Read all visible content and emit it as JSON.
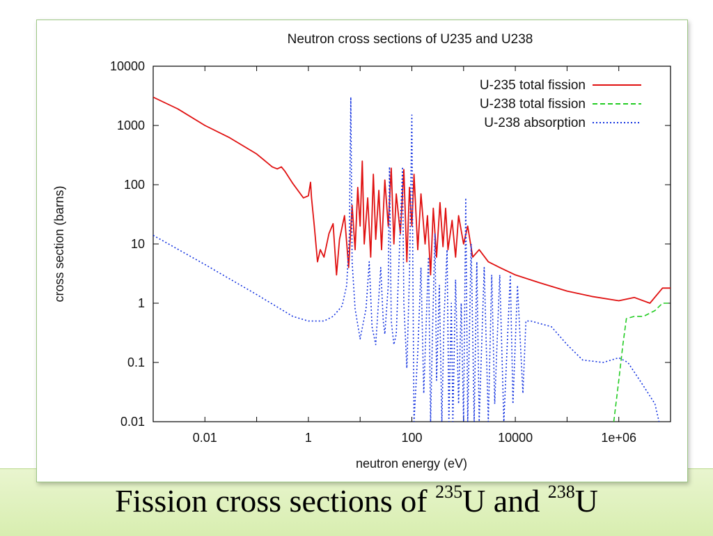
{
  "caption": {
    "text_before": "Fission cross sections of ",
    "iso1_mass": "235",
    "iso1_symbol": "U and ",
    "iso2_mass": "238",
    "iso2_symbol": "U"
  },
  "chart_data": {
    "type": "line",
    "title": "Neutron cross sections of U235 and U238",
    "xlabel": "neutron energy (eV)",
    "ylabel": "cross section (barns)",
    "x_scale": "log",
    "y_scale": "log",
    "xlim": [
      0.001,
      10000000
    ],
    "ylim": [
      0.01,
      10000
    ],
    "x_ticks": [
      {
        "value": 0.01,
        "label": "0.01"
      },
      {
        "value": 1,
        "label": "1"
      },
      {
        "value": 100,
        "label": "100"
      },
      {
        "value": 10000,
        "label": "10000"
      },
      {
        "value": 1000000,
        "label": "1e+06"
      }
    ],
    "y_ticks": [
      {
        "value": 0.01,
        "label": "0.01"
      },
      {
        "value": 0.1,
        "label": "0.1"
      },
      {
        "value": 1,
        "label": "1"
      },
      {
        "value": 10,
        "label": "10"
      },
      {
        "value": 100,
        "label": "100"
      },
      {
        "value": 1000,
        "label": "1000"
      },
      {
        "value": 10000,
        "label": "10000"
      }
    ],
    "grid": false,
    "legend_position": "top-right",
    "series": [
      {
        "name": "U-235 total fission",
        "color": "#e01010",
        "dash": "solid",
        "points": [
          [
            0.001,
            3000
          ],
          [
            0.003,
            1900
          ],
          [
            0.01,
            1000
          ],
          [
            0.03,
            620
          ],
          [
            0.1,
            330
          ],
          [
            0.2,
            200
          ],
          [
            0.25,
            185
          ],
          [
            0.3,
            200
          ],
          [
            0.35,
            170
          ],
          [
            0.5,
            105
          ],
          [
            0.8,
            60
          ],
          [
            1.0,
            65
          ],
          [
            1.1,
            110
          ],
          [
            1.15,
            60
          ],
          [
            1.3,
            20
          ],
          [
            1.5,
            5
          ],
          [
            1.7,
            8
          ],
          [
            2.0,
            6
          ],
          [
            2.5,
            15
          ],
          [
            3,
            22
          ],
          [
            3.5,
            3
          ],
          [
            4,
            12
          ],
          [
            5,
            30
          ],
          [
            6,
            4
          ],
          [
            7,
            45
          ],
          [
            8,
            8
          ],
          [
            9,
            90
          ],
          [
            10,
            20
          ],
          [
            11,
            250
          ],
          [
            12,
            10
          ],
          [
            14,
            60
          ],
          [
            16,
            6
          ],
          [
            18,
            150
          ],
          [
            20,
            12
          ],
          [
            23,
            80
          ],
          [
            26,
            8
          ],
          [
            30,
            120
          ],
          [
            35,
            20
          ],
          [
            40,
            190
          ],
          [
            45,
            10
          ],
          [
            50,
            70
          ],
          [
            60,
            15
          ],
          [
            70,
            180
          ],
          [
            80,
            5
          ],
          [
            90,
            90
          ],
          [
            100,
            20
          ],
          [
            110,
            150
          ],
          [
            130,
            8
          ],
          [
            150,
            70
          ],
          [
            180,
            10
          ],
          [
            200,
            30
          ],
          [
            230,
            3
          ],
          [
            260,
            40
          ],
          [
            300,
            6
          ],
          [
            350,
            50
          ],
          [
            400,
            9
          ],
          [
            450,
            40
          ],
          [
            500,
            8
          ],
          [
            600,
            25
          ],
          [
            700,
            6
          ],
          [
            800,
            30
          ],
          [
            1000,
            10
          ],
          [
            1200,
            20
          ],
          [
            1500,
            6
          ],
          [
            2000,
            8
          ],
          [
            3000,
            5
          ],
          [
            5000,
            4
          ],
          [
            10000,
            3
          ],
          [
            30000,
            2.2
          ],
          [
            100000,
            1.6
          ],
          [
            300000,
            1.3
          ],
          [
            1000000,
            1.1
          ],
          [
            2000000,
            1.25
          ],
          [
            4000000,
            1.0
          ],
          [
            7000000,
            1.8
          ],
          [
            10000000,
            1.8
          ]
        ]
      },
      {
        "name": "U-238 total fission",
        "color": "#22cc22",
        "dash": "dashed",
        "points": [
          [
            800000,
            0.01
          ],
          [
            1000000,
            0.05
          ],
          [
            1200000,
            0.2
          ],
          [
            1400000,
            0.55
          ],
          [
            2000000,
            0.6
          ],
          [
            3000000,
            0.6
          ],
          [
            5000000,
            0.75
          ],
          [
            7000000,
            1.0
          ],
          [
            10000000,
            1.0
          ]
        ]
      },
      {
        "name": "U-238 absorption",
        "color": "#1030e0",
        "dash": "dotted",
        "points": [
          [
            0.001,
            14
          ],
          [
            0.01,
            4.5
          ],
          [
            0.1,
            1.4
          ],
          [
            0.5,
            0.6
          ],
          [
            1.0,
            0.5
          ],
          [
            2.0,
            0.5
          ],
          [
            3.0,
            0.6
          ],
          [
            4.5,
            0.9
          ],
          [
            5.5,
            2.0
          ],
          [
            6.2,
            15
          ],
          [
            6.6,
            3000
          ],
          [
            7.0,
            5
          ],
          [
            8,
            0.8
          ],
          [
            10,
            0.25
          ],
          [
            13,
            0.8
          ],
          [
            15,
            5
          ],
          [
            17,
            0.4
          ],
          [
            20,
            0.2
          ],
          [
            25,
            4
          ],
          [
            28,
            0.5
          ],
          [
            30,
            0.3
          ],
          [
            35,
            2
          ],
          [
            37,
            200
          ],
          [
            40,
            0.5
          ],
          [
            45,
            0.2
          ],
          [
            50,
            0.3
          ],
          [
            60,
            20
          ],
          [
            66,
            200
          ],
          [
            70,
            1
          ],
          [
            80,
            0.08
          ],
          [
            90,
            3
          ],
          [
            100,
            1500
          ],
          [
            105,
            2
          ],
          [
            110,
            0.01
          ],
          [
            130,
            0.15
          ],
          [
            150,
            4
          ],
          [
            170,
            0.03
          ],
          [
            190,
            0.5
          ],
          [
            210,
            6
          ],
          [
            230,
            0.01
          ],
          [
            250,
            0.3
          ],
          [
            280,
            15
          ],
          [
            300,
            0.05
          ],
          [
            340,
            2
          ],
          [
            380,
            0.01
          ],
          [
            420,
            0.6
          ],
          [
            480,
            8
          ],
          [
            520,
            0.01
          ],
          [
            580,
            1
          ],
          [
            620,
            0.01
          ],
          [
            700,
            2.5
          ],
          [
            800,
            0.02
          ],
          [
            900,
            1
          ],
          [
            1000,
            0.01
          ],
          [
            1100,
            60
          ],
          [
            1200,
            0.01
          ],
          [
            1400,
            10
          ],
          [
            1600,
            0.01
          ],
          [
            1800,
            5
          ],
          [
            2000,
            0.01
          ],
          [
            2500,
            4
          ],
          [
            3000,
            0.01
          ],
          [
            3500,
            3
          ],
          [
            4000,
            0.02
          ],
          [
            5000,
            3
          ],
          [
            6000,
            0.01
          ],
          [
            8000,
            3
          ],
          [
            9000,
            0.02
          ],
          [
            11000,
            2
          ],
          [
            14000,
            0.03
          ],
          [
            16000,
            0.5
          ],
          [
            20000,
            0.5
          ],
          [
            50000,
            0.4
          ],
          [
            100000,
            0.2
          ],
          [
            200000,
            0.11
          ],
          [
            500000,
            0.1
          ],
          [
            1000000,
            0.12
          ],
          [
            1500000,
            0.1
          ],
          [
            3000000,
            0.04
          ],
          [
            5000000,
            0.02
          ],
          [
            6000000,
            0.01
          ]
        ]
      }
    ]
  }
}
